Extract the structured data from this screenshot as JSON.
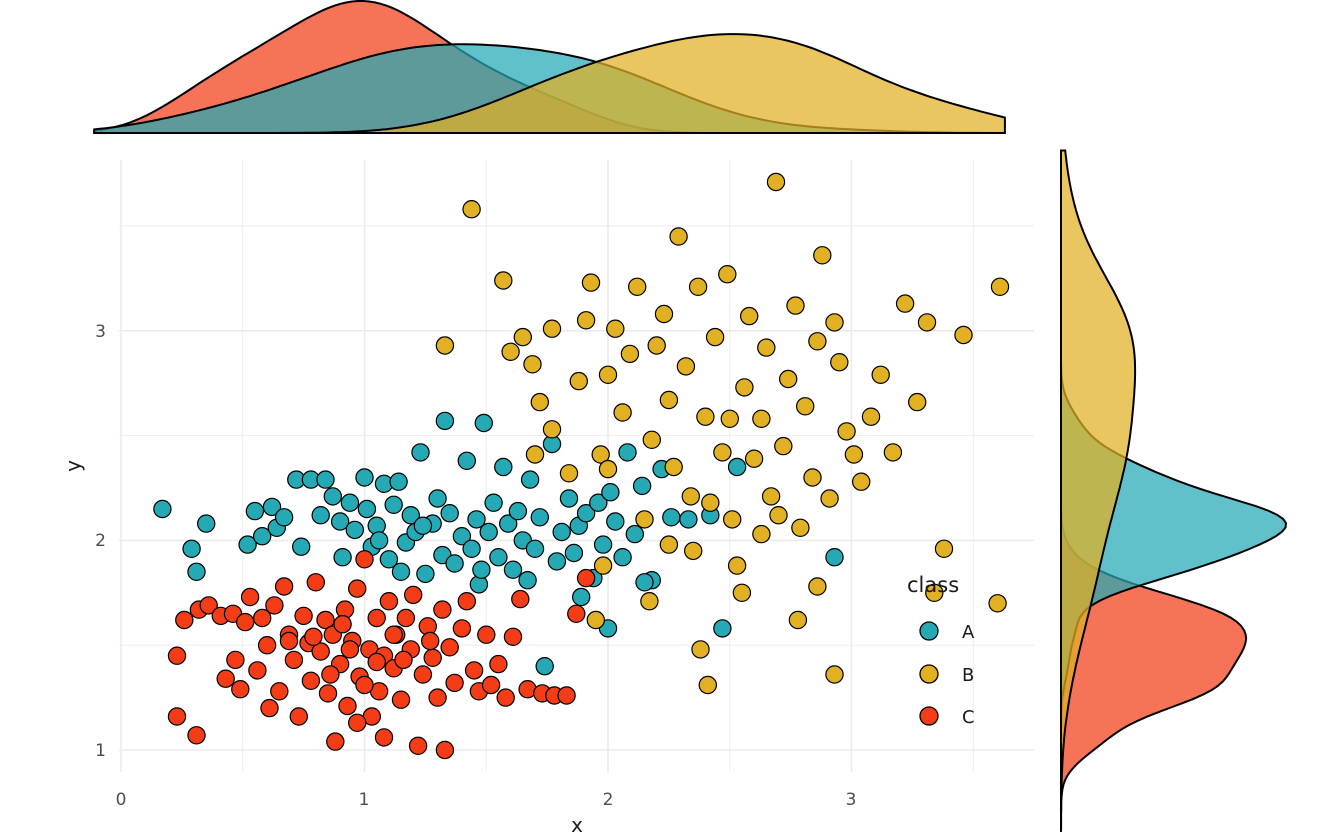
{
  "chart_data": {
    "type": "scatter",
    "title": "",
    "xlabel": "x",
    "ylabel": "y",
    "xlim": [
      -0.05,
      3.77
    ],
    "ylim": [
      0.95,
      3.77
    ],
    "x_ticks": [
      0,
      1,
      2,
      3
    ],
    "y_ticks": [
      1,
      2,
      3
    ],
    "x_tick_labels": [
      "0",
      "1",
      "2",
      "3"
    ],
    "y_tick_labels": [
      "1",
      "2",
      "3"
    ],
    "grid": true,
    "legend": {
      "title": "class",
      "position": "right-inside-bottom"
    },
    "marginals": {
      "top": "density of x by class",
      "right": "density of y by class"
    },
    "series": [
      {
        "name": "A",
        "color": "#24a9b5",
        "center": {
          "x": 1.5,
          "y": 2.05
        },
        "points": [
          [
            0.17,
            2.15
          ],
          [
            0.29,
            1.96
          ],
          [
            0.31,
            1.85
          ],
          [
            0.35,
            2.08
          ],
          [
            0.52,
            1.98
          ],
          [
            0.55,
            2.14
          ],
          [
            0.58,
            2.02
          ],
          [
            0.62,
            2.16
          ],
          [
            0.64,
            2.06
          ],
          [
            0.67,
            2.11
          ],
          [
            0.72,
            2.29
          ],
          [
            0.74,
            1.97
          ],
          [
            0.78,
            2.29
          ],
          [
            0.82,
            2.12
          ],
          [
            0.84,
            2.29
          ],
          [
            0.87,
            2.21
          ],
          [
            0.9,
            2.09
          ],
          [
            0.91,
            1.92
          ],
          [
            0.94,
            2.18
          ],
          [
            0.96,
            2.05
          ],
          [
            1.0,
            2.3
          ],
          [
            1.01,
            2.15
          ],
          [
            1.03,
            1.97
          ],
          [
            1.05,
            2.07
          ],
          [
            1.08,
            2.27
          ],
          [
            1.1,
            1.91
          ],
          [
            1.12,
            2.17
          ],
          [
            1.14,
            2.28
          ],
          [
            1.17,
            1.99
          ],
          [
            1.19,
            2.12
          ],
          [
            1.21,
            2.04
          ],
          [
            1.23,
            2.42
          ],
          [
            1.25,
            1.84
          ],
          [
            1.28,
            2.08
          ],
          [
            1.3,
            2.2
          ],
          [
            1.32,
            1.93
          ],
          [
            1.33,
            2.57
          ],
          [
            1.35,
            2.13
          ],
          [
            1.37,
            1.89
          ],
          [
            1.4,
            2.02
          ],
          [
            1.42,
            2.38
          ],
          [
            1.44,
            1.96
          ],
          [
            1.46,
            2.1
          ],
          [
            1.47,
            1.79
          ],
          [
            1.49,
            2.56
          ],
          [
            1.51,
            2.04
          ],
          [
            1.53,
            2.18
          ],
          [
            1.55,
            1.92
          ],
          [
            1.57,
            2.35
          ],
          [
            1.59,
            2.08
          ],
          [
            1.61,
            1.86
          ],
          [
            1.63,
            2.14
          ],
          [
            1.65,
            2.0
          ],
          [
            1.68,
            2.29
          ],
          [
            1.7,
            1.96
          ],
          [
            1.72,
            2.11
          ],
          [
            1.74,
            1.4
          ],
          [
            1.77,
            2.46
          ],
          [
            1.79,
            1.9
          ],
          [
            1.81,
            2.04
          ],
          [
            1.84,
            2.2
          ],
          [
            1.86,
            1.94
          ],
          [
            1.88,
            2.07
          ],
          [
            1.91,
            2.13
          ],
          [
            1.94,
            1.82
          ],
          [
            1.96,
            2.18
          ],
          [
            1.98,
            1.98
          ],
          [
            2.01,
            2.23
          ],
          [
            2.03,
            2.09
          ],
          [
            2.06,
            1.92
          ],
          [
            2.08,
            2.42
          ],
          [
            2.11,
            2.03
          ],
          [
            2.14,
            2.26
          ],
          [
            2.18,
            1.81
          ],
          [
            2.22,
            2.34
          ],
          [
            2.26,
            2.11
          ],
          [
            2.33,
            2.1
          ],
          [
            2.42,
            2.12
          ],
          [
            2.47,
            1.58
          ],
          [
            2.53,
            2.35
          ],
          [
            2.93,
            1.92
          ],
          [
            1.24,
            2.07
          ],
          [
            1.15,
            1.85
          ],
          [
            1.06,
            2.0
          ],
          [
            1.48,
            1.86
          ],
          [
            1.67,
            1.81
          ],
          [
            1.89,
            1.73
          ],
          [
            2.15,
            1.8
          ],
          [
            2.0,
            1.58
          ]
        ]
      },
      {
        "name": "B",
        "color": "#e2b023",
        "center": {
          "x": 2.5,
          "y": 2.5
        },
        "points": [
          [
            1.33,
            2.93
          ],
          [
            1.44,
            3.58
          ],
          [
            1.57,
            3.24
          ],
          [
            1.6,
            2.9
          ],
          [
            1.65,
            2.97
          ],
          [
            1.69,
            2.84
          ],
          [
            1.72,
            2.66
          ],
          [
            1.77,
            3.01
          ],
          [
            1.84,
            2.32
          ],
          [
            1.88,
            2.76
          ],
          [
            1.91,
            3.05
          ],
          [
            1.93,
            3.23
          ],
          [
            1.97,
            2.41
          ],
          [
            2.0,
            2.79
          ],
          [
            2.03,
            3.01
          ],
          [
            2.06,
            2.61
          ],
          [
            2.09,
            2.89
          ],
          [
            2.12,
            3.21
          ],
          [
            2.15,
            2.1
          ],
          [
            2.18,
            2.48
          ],
          [
            2.2,
            2.93
          ],
          [
            2.23,
            3.08
          ],
          [
            2.25,
            2.67
          ],
          [
            2.27,
            2.35
          ],
          [
            2.29,
            3.45
          ],
          [
            2.32,
            2.83
          ],
          [
            2.35,
            1.95
          ],
          [
            2.37,
            3.21
          ],
          [
            2.4,
            2.59
          ],
          [
            2.42,
            2.18
          ],
          [
            2.44,
            2.97
          ],
          [
            2.47,
            2.42
          ],
          [
            2.49,
            3.27
          ],
          [
            2.51,
            2.1
          ],
          [
            2.53,
            1.88
          ],
          [
            2.56,
            2.73
          ],
          [
            2.58,
            3.07
          ],
          [
            2.6,
            2.39
          ],
          [
            2.63,
            2.58
          ],
          [
            2.65,
            2.92
          ],
          [
            2.67,
            2.21
          ],
          [
            2.69,
            3.71
          ],
          [
            2.72,
            2.45
          ],
          [
            2.74,
            2.77
          ],
          [
            2.77,
            3.12
          ],
          [
            2.79,
            2.06
          ],
          [
            2.81,
            2.64
          ],
          [
            2.84,
            2.3
          ],
          [
            2.86,
            2.95
          ],
          [
            2.88,
            3.36
          ],
          [
            2.91,
            2.2
          ],
          [
            2.93,
            3.04
          ],
          [
            2.95,
            2.85
          ],
          [
            2.98,
            2.52
          ],
          [
            3.01,
            2.41
          ],
          [
            3.04,
            2.28
          ],
          [
            3.08,
            2.59
          ],
          [
            3.12,
            2.79
          ],
          [
            3.17,
            2.42
          ],
          [
            3.22,
            3.13
          ],
          [
            3.27,
            2.66
          ],
          [
            3.31,
            3.04
          ],
          [
            3.34,
            1.75
          ],
          [
            3.38,
            1.96
          ],
          [
            3.46,
            2.98
          ],
          [
            3.61,
            3.21
          ],
          [
            3.6,
            1.7
          ],
          [
            2.38,
            1.48
          ],
          [
            2.41,
            1.31
          ],
          [
            2.93,
            1.36
          ],
          [
            1.95,
            1.62
          ],
          [
            2.78,
            1.62
          ],
          [
            2.63,
            2.03
          ],
          [
            1.98,
            1.88
          ],
          [
            2.17,
            1.71
          ],
          [
            2.25,
            1.98
          ],
          [
            2.34,
            2.21
          ],
          [
            2.5,
            2.58
          ],
          [
            2.55,
            1.75
          ],
          [
            2.7,
            2.12
          ],
          [
            2.86,
            1.78
          ],
          [
            2.0,
            2.34
          ],
          [
            1.7,
            2.41
          ],
          [
            1.77,
            2.53
          ]
        ]
      },
      {
        "name": "C",
        "color": "#f43d17",
        "center": {
          "x": 0.95,
          "y": 1.5
        },
        "points": [
          [
            0.23,
            1.45
          ],
          [
            0.23,
            1.16
          ],
          [
            0.26,
            1.62
          ],
          [
            0.31,
            1.07
          ],
          [
            0.32,
            1.67
          ],
          [
            0.36,
            1.69
          ],
          [
            0.41,
            1.64
          ],
          [
            0.43,
            1.34
          ],
          [
            0.46,
            1.65
          ],
          [
            0.47,
            1.43
          ],
          [
            0.49,
            1.29
          ],
          [
            0.51,
            1.61
          ],
          [
            0.53,
            1.73
          ],
          [
            0.56,
            1.38
          ],
          [
            0.58,
            1.63
          ],
          [
            0.6,
            1.5
          ],
          [
            0.61,
            1.2
          ],
          [
            0.63,
            1.69
          ],
          [
            0.65,
            1.28
          ],
          [
            0.67,
            1.78
          ],
          [
            0.69,
            1.55
          ],
          [
            0.71,
            1.43
          ],
          [
            0.73,
            1.16
          ],
          [
            0.75,
            1.64
          ],
          [
            0.77,
            1.51
          ],
          [
            0.78,
            1.33
          ],
          [
            0.8,
            1.8
          ],
          [
            0.82,
            1.47
          ],
          [
            0.84,
            1.62
          ],
          [
            0.85,
            1.27
          ],
          [
            0.87,
            1.55
          ],
          [
            0.88,
            1.04
          ],
          [
            0.9,
            1.41
          ],
          [
            0.92,
            1.67
          ],
          [
            0.93,
            1.21
          ],
          [
            0.95,
            1.52
          ],
          [
            0.97,
            1.77
          ],
          [
            0.98,
            1.35
          ],
          [
            1.0,
            1.91
          ],
          [
            1.02,
            1.48
          ],
          [
            1.03,
            1.16
          ],
          [
            1.05,
            1.63
          ],
          [
            1.06,
            1.28
          ],
          [
            1.08,
            1.45
          ],
          [
            1.1,
            1.71
          ],
          [
            1.12,
            1.39
          ],
          [
            1.13,
            1.55
          ],
          [
            1.15,
            1.24
          ],
          [
            1.17,
            1.63
          ],
          [
            1.19,
            1.48
          ],
          [
            1.2,
            1.74
          ],
          [
            1.22,
            1.02
          ],
          [
            1.24,
            1.36
          ],
          [
            1.26,
            1.59
          ],
          [
            1.28,
            1.44
          ],
          [
            1.3,
            1.25
          ],
          [
            1.32,
            1.67
          ],
          [
            1.33,
            1.0
          ],
          [
            1.35,
            1.49
          ],
          [
            1.37,
            1.32
          ],
          [
            1.4,
            1.58
          ],
          [
            1.42,
            1.71
          ],
          [
            1.45,
            1.38
          ],
          [
            1.47,
            1.28
          ],
          [
            1.5,
            1.55
          ],
          [
            1.52,
            1.31
          ],
          [
            1.55,
            1.41
          ],
          [
            1.58,
            1.25
          ],
          [
            1.61,
            1.54
          ],
          [
            1.64,
            1.72
          ],
          [
            1.67,
            1.29
          ],
          [
            1.73,
            1.27
          ],
          [
            1.78,
            1.26
          ],
          [
            1.83,
            1.26
          ],
          [
            1.87,
            1.65
          ],
          [
            1.91,
            1.82
          ],
          [
            1.08,
            1.06
          ],
          [
            0.97,
            1.13
          ],
          [
            0.79,
            1.54
          ],
          [
            0.69,
            1.52
          ],
          [
            1.16,
            1.43
          ],
          [
            0.86,
            1.36
          ],
          [
            0.91,
            1.6
          ],
          [
            1.0,
            1.31
          ],
          [
            1.12,
            1.55
          ],
          [
            1.27,
            1.52
          ],
          [
            0.94,
            1.48
          ],
          [
            1.05,
            1.42
          ]
        ]
      }
    ]
  }
}
